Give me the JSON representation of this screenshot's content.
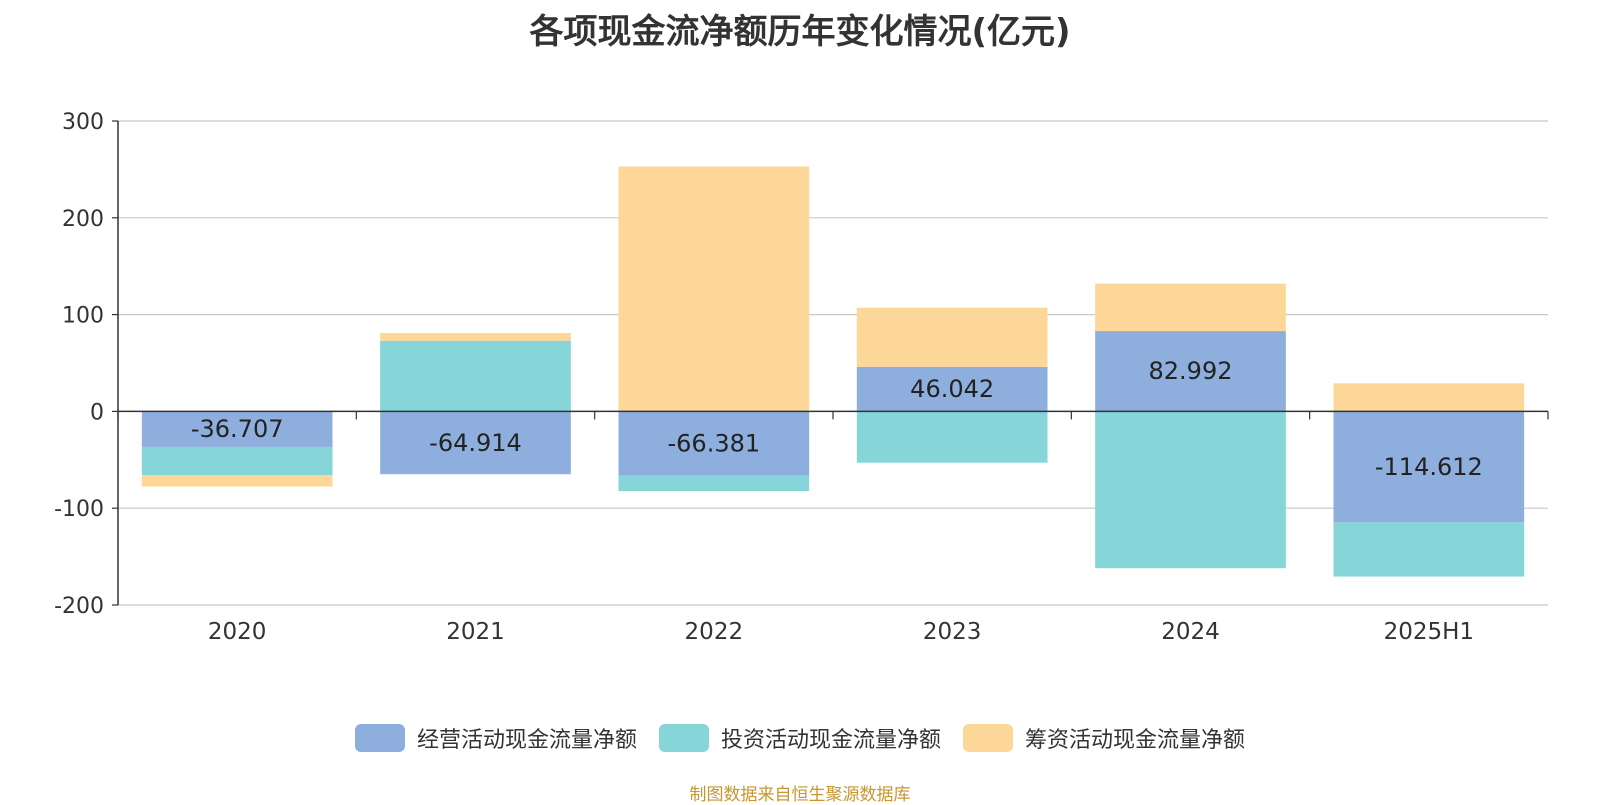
{
  "chart_data": {
    "type": "bar",
    "stacked": true,
    "title": "各项现金流净额历年变化情况(亿元)",
    "categories": [
      "2020",
      "2021",
      "2022",
      "2023",
      "2024",
      "2025H1"
    ],
    "series": [
      {
        "name": "经营活动现金流量净额",
        "color": "#8eaedd",
        "values": [
          -36.707,
          -64.914,
          -66.381,
          46.042,
          82.992,
          -114.612
        ],
        "labels": [
          "-36.707",
          "-64.914",
          "-66.381",
          "46.042",
          "82.992",
          "-114.612"
        ]
      },
      {
        "name": "投资活动现金流量净额",
        "color": "#86d5d8",
        "values": [
          -29,
          73,
          -16,
          -53,
          -162,
          -56
        ]
      },
      {
        "name": "筹资活动现金流量净额",
        "color": "#fdd797",
        "values": [
          -12,
          8,
          253,
          61,
          49,
          29
        ]
      }
    ],
    "ylim": [
      -200,
      300
    ],
    "yticks": [
      -200,
      -100,
      0,
      100,
      200,
      300
    ],
    "grid": true,
    "legend_position": "bottom"
  },
  "source_note": "制图数据来自恒生聚源数据库"
}
